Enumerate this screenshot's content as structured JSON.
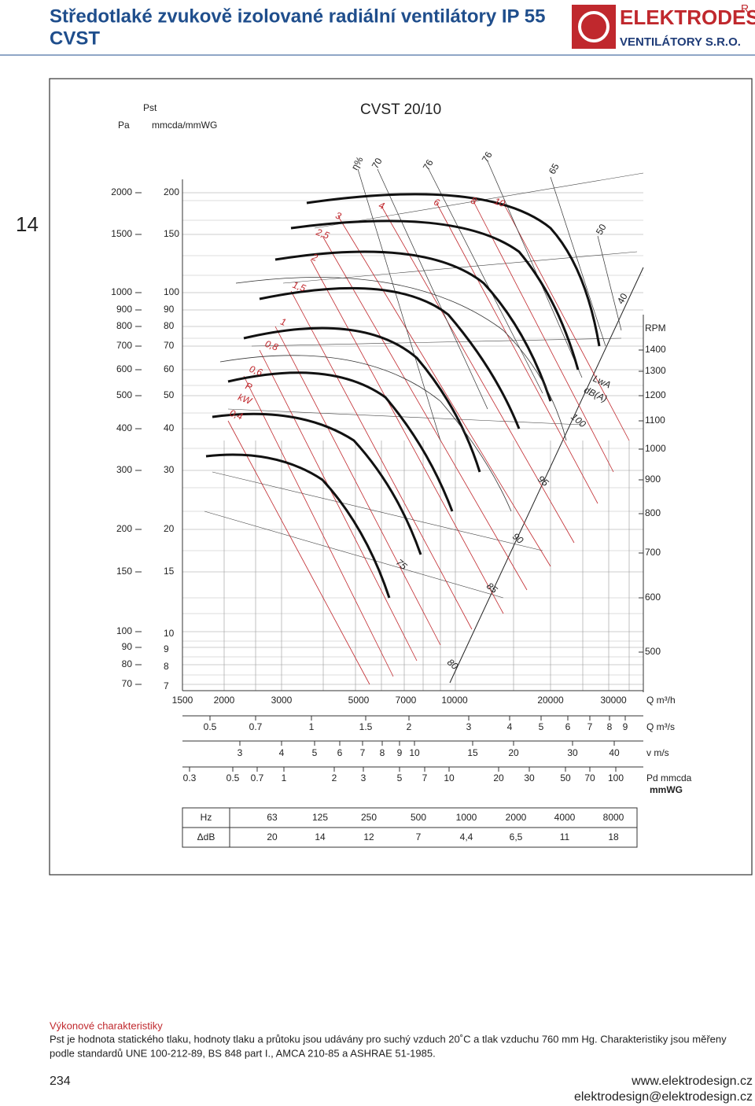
{
  "header": {
    "title": "Středotlaké zvukově izolované radiální ventilátory IP 55",
    "subtitle": "CVST"
  },
  "logo": {
    "name": "ELEKTRODESIGN",
    "tagline": "VENTILÁTORY S.R.O.",
    "mark": "R"
  },
  "section_tab": "14",
  "chart": {
    "pressure_label": "Pst",
    "pa_unit": "Pa",
    "mmwg_unit": "mmcda/mmWG",
    "model": "CVST 20/10",
    "pa_ticks": [
      "2000",
      "1500",
      "1000",
      "900",
      "800",
      "700",
      "600",
      "500",
      "400",
      "300",
      "200",
      "150",
      "100",
      "90",
      "80",
      "70"
    ],
    "mmwg_ticks": [
      "200",
      "150",
      "100",
      "90",
      "80",
      "70",
      "60",
      "50",
      "40",
      "30",
      "20",
      "15",
      "10",
      "9",
      "8",
      "7"
    ],
    "rpm_label": "RPM",
    "rpm_ticks": [
      "1400",
      "1300",
      "1200",
      "1100",
      "1000",
      "900",
      "800",
      "700",
      "600",
      "500"
    ],
    "efficiency_label": "η%",
    "efficiency_values": [
      "70",
      "76",
      "76",
      "65",
      "50",
      "40"
    ],
    "power_values": [
      "3",
      "4",
      "6",
      "8",
      "10",
      "2,5",
      "2",
      "1,5",
      "1",
      "0,8",
      "0,6",
      "0,4"
    ],
    "power_label": "P",
    "power_unit": "kW",
    "sound_label": "LwA",
    "sound_unit": "dB(A)",
    "sound_values": [
      "100",
      "95",
      "90",
      "85",
      "80",
      "75"
    ],
    "q_m3h": {
      "ticks": [
        "1500",
        "2000",
        "3000",
        "5000",
        "7000",
        "10000",
        "20000",
        "30000"
      ],
      "label": "Q m³/h"
    },
    "q_m3s": {
      "ticks": [
        "0.5",
        "0.7",
        "1",
        "1.5",
        "2",
        "3",
        "4",
        "5",
        "6",
        "7",
        "8",
        "9"
      ],
      "label": "Q m³/s"
    },
    "velocity": {
      "ticks": [
        "3",
        "4",
        "5",
        "6",
        "7",
        "8",
        "9",
        "10",
        "15",
        "20",
        "30",
        "40"
      ],
      "label": "v m/s"
    },
    "dynamic_pressure": {
      "ticks": [
        "0.3",
        "0.5",
        "0.7",
        "1",
        "2",
        "3",
        "5",
        "7",
        "10",
        "20",
        "30",
        "50",
        "70",
        "100"
      ],
      "label": "Pd mmcda",
      "unit": "mmWG"
    },
    "table": {
      "rows": [
        [
          "Hz",
          "63",
          "125",
          "250",
          "500",
          "1000",
          "2000",
          "4000",
          "8000"
        ],
        [
          "ΔdB",
          "20",
          "14",
          "12",
          "7",
          "4,4",
          "6,5",
          "11",
          "18"
        ]
      ]
    }
  },
  "footer": {
    "heading": "Výkonové charakteristiky",
    "text": [
      "Pst je hodnota statického tlaku, hodnoty tlaku a průtoku jsou udávány pro suchý vzduch 20˚C a tlak vzduchu 760 mm Hg. Charakteristiky jsou měřeny",
      "podle standardů UNE 100-212-89, BS 848 part I., AMCA 210-85 a ASHRAE 51-1985."
    ],
    "page": "234",
    "web": "www.elektrodesign.cz",
    "email": "elektrodesign@elektrodesign.cz"
  }
}
